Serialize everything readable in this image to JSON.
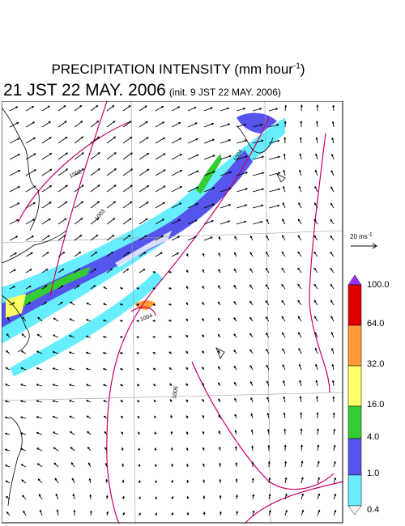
{
  "title": {
    "line1": "PRECIPITATION INTENSITY (mm hour",
    "line1_exp": "-1",
    "line1_end": ")",
    "valid": "21 JST 22 MAY. 2006",
    "init": "(init. 9 JST 22 MAY. 2006)"
  },
  "reference_vector": {
    "label": "20 ms",
    "label_exp": "-1"
  },
  "colorbar": {
    "labels": [
      "100.0",
      "64.0",
      "32.0",
      "16.0",
      "4.0",
      "1.0",
      "0.4"
    ],
    "colors": [
      "#9b30ff",
      "#e00000",
      "#ff9933",
      "#ffff66",
      "#33cc33",
      "#5555ee",
      "#66eeff"
    ],
    "over_color": "#9b30ff"
  },
  "isobars": [
    "1002",
    "1003",
    "1004",
    "1005",
    "1004"
  ],
  "colors": {
    "isobar": "#cc0066",
    "grid": "#999999",
    "coast": "#000000"
  }
}
